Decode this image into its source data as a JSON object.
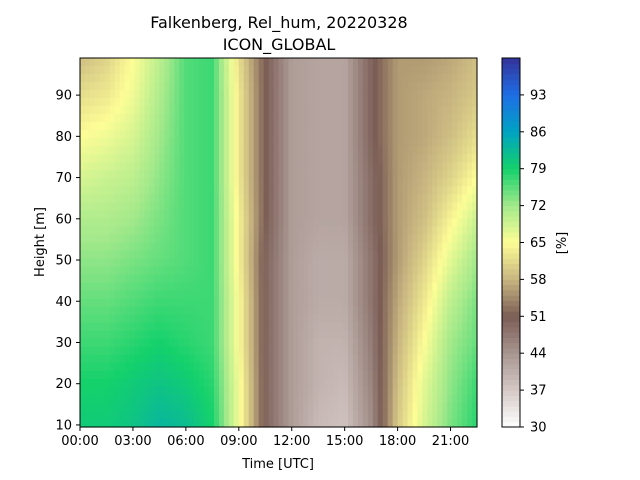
{
  "chart_data": {
    "type": "heatmap",
    "title_line1": "Falkenberg, Rel_hum, 20220328",
    "title_line2": "ICON_GLOBAL",
    "xlabel": "Time [UTC]",
    "ylabel": "Height [m]",
    "colorbar_label": "[%]",
    "xlim": [
      0,
      22.5
    ],
    "ylim": [
      9.5,
      99
    ],
    "x_ticks": [
      {
        "value": 0,
        "label": "00:00"
      },
      {
        "value": 3,
        "label": "03:00"
      },
      {
        "value": 6,
        "label": "06:00"
      },
      {
        "value": 9,
        "label": "09:00"
      },
      {
        "value": 12,
        "label": "12:00"
      },
      {
        "value": 15,
        "label": "15:00"
      },
      {
        "value": 18,
        "label": "18:00"
      },
      {
        "value": 21,
        "label": "21:00"
      }
    ],
    "y_ticks": [
      10,
      20,
      30,
      40,
      50,
      60,
      70,
      80,
      90
    ],
    "colorbar_range": [
      30,
      100
    ],
    "colorbar_ticks": [
      30,
      37,
      44,
      51,
      58,
      65,
      72,
      79,
      86,
      93
    ],
    "time_hours": [
      0,
      1.5,
      3,
      4.5,
      6,
      7.5,
      9,
      10.5,
      12,
      13.5,
      15,
      16.5,
      18,
      19.5,
      21,
      22.5
    ],
    "heights_m": [
      10,
      20,
      30,
      40,
      50,
      60,
      70,
      80,
      90,
      99
    ],
    "rel_hum_percent": [
      [
        80,
        80,
        81,
        83,
        82,
        79,
        66,
        50,
        43,
        39,
        38,
        45,
        60,
        68,
        74,
        78
      ],
      [
        79,
        79,
        80,
        81,
        80,
        78,
        66,
        50,
        43,
        40,
        39,
        46,
        59,
        67,
        73,
        77
      ],
      [
        77,
        77,
        78,
        79,
        78,
        77,
        65,
        50,
        43,
        40,
        40,
        47,
        58,
        65,
        72,
        75
      ],
      [
        75,
        75,
        76,
        77,
        77,
        77,
        65,
        50,
        43,
        41,
        41,
        48,
        57,
        63,
        70,
        74
      ],
      [
        73,
        73,
        74,
        75,
        76,
        77,
        64,
        50,
        43,
        41,
        41,
        48,
        56,
        61,
        67,
        72
      ],
      [
        71,
        71,
        72,
        74,
        76,
        77,
        64,
        51,
        43,
        42,
        42,
        49,
        56,
        59,
        64,
        69
      ],
      [
        68,
        69,
        70,
        73,
        76,
        77,
        63,
        51,
        43,
        42,
        42,
        49,
        56,
        58,
        61,
        65
      ],
      [
        65,
        66,
        68,
        72,
        76,
        77,
        63,
        51,
        43,
        42,
        42,
        50,
        56,
        57,
        59,
        62
      ],
      [
        62,
        63,
        66,
        71,
        76,
        77,
        63,
        51,
        43,
        42,
        42,
        50,
        56,
        57,
        58,
        60
      ],
      [
        59,
        61,
        65,
        70,
        76,
        77,
        62,
        51,
        43,
        42,
        42,
        50,
        56,
        56,
        57,
        59
      ]
    ],
    "colormap": [
      {
        "v": 30,
        "c": "#ffffff"
      },
      {
        "v": 37,
        "c": "#d5c9c6"
      },
      {
        "v": 44,
        "c": "#a89590"
      },
      {
        "v": 51,
        "c": "#7b5d55"
      },
      {
        "v": 58,
        "c": "#c7b480"
      },
      {
        "v": 65,
        "c": "#fdfd96"
      },
      {
        "v": 72,
        "c": "#a3e98b"
      },
      {
        "v": 79,
        "c": "#14d16b"
      },
      {
        "v": 86,
        "c": "#00a3c2"
      },
      {
        "v": 93,
        "c": "#1e6ee6"
      },
      {
        "v": 100,
        "c": "#333399"
      }
    ]
  }
}
